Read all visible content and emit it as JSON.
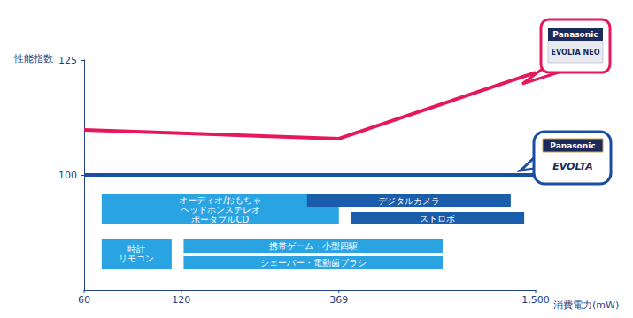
{
  "chart_data": {
    "type": "line",
    "y_label": "性能指数",
    "x_label": "消費電力(mW)",
    "log": "x",
    "grid": false,
    "xlim": [
      60,
      1500
    ],
    "xticks": [
      60,
      120,
      369,
      {
        "value": 1500,
        "label": "1,500"
      }
    ],
    "ylim": [
      75,
      125
    ],
    "yticks": [
      100,
      125
    ],
    "series": [
      {
        "name": "EVOLTA NEO",
        "brand": "Panasonic",
        "color": "#e5195a",
        "x": [
          60,
          369,
          1500
        ],
        "values": [
          109.8,
          107.9,
          122.3
        ]
      },
      {
        "name": "EVOLTA",
        "brand": "Panasonic",
        "color": "#1a4ea0",
        "x": [
          60,
          1500
        ],
        "values": [
          100,
          100
        ]
      }
    ],
    "bands": [
      {
        "label": "オーディオ/おもちゃ\nヘッドホンステレオ\nポータブルCD",
        "range": [
          68,
          369
        ],
        "color": "#2aa3e3"
      },
      {
        "label": "デジタルカメラ",
        "range": [
          294,
          1256
        ],
        "color": "#1a5dab"
      },
      {
        "label": "ストロボ",
        "range": [
          402,
          1383
        ],
        "color": "#1a5dab"
      },
      {
        "label": "時計\nリモコン",
        "range": [
          68,
          112
        ],
        "color": "#2aa3e3"
      },
      {
        "label": "携帯ゲーム・小型四駆",
        "range": [
          122,
          773
        ],
        "color": "#2aa3e3"
      },
      {
        "label": "シェーバー・電動歯ブラシ",
        "range": [
          122,
          773
        ],
        "color": "#2aa3e3"
      }
    ]
  }
}
